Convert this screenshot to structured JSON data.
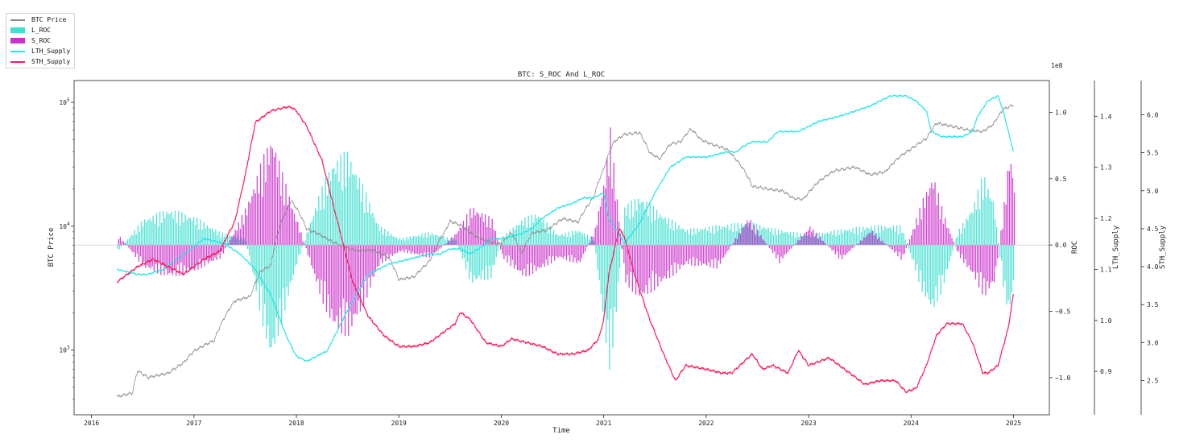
{
  "legend": [
    {
      "label": "BTC Price",
      "color": "#8c8c8c",
      "kind": "line"
    },
    {
      "label": "L_ROC",
      "color": "#40e0d0",
      "kind": "patch"
    },
    {
      "label": "S_ROC",
      "color": "#cc33cc",
      "kind": "patch"
    },
    {
      "label": "LTH_Supply",
      "color": "#22e6e6",
      "kind": "line"
    },
    {
      "label": "STH_Supply",
      "color": "#ff1a55",
      "kind": "line"
    }
  ],
  "chart_data": {
    "type": "line",
    "title": "BTC: S_ROC And L_ROC",
    "xlabel": "Time",
    "xlim": [
      2015.83,
      2025.35
    ],
    "x_ticks": [
      "2016",
      "2017",
      "2018",
      "2019",
      "2020",
      "2021",
      "2022",
      "2023",
      "2024",
      "2025"
    ],
    "axes": {
      "btc_price": {
        "label": "BTC Price",
        "scale": "log",
        "ylim": [
          300,
          150000
        ],
        "ticks": [
          1000,
          10000,
          100000
        ],
        "tick_labels": [
          "10",
          "10",
          "10"
        ],
        "tick_exponents": [
          "3",
          "4",
          "5"
        ],
        "side": "left"
      },
      "roc": {
        "label": "ROC",
        "ylim": [
          -1.28,
          1.24
        ],
        "ticks": [
          -1.0,
          -0.5,
          0.0,
          0.5,
          1.0
        ],
        "tick_labels": [
          "−1.0",
          "−0.5",
          "0.0",
          "0.5",
          "1.0"
        ],
        "multiplier": "1e8",
        "side": "right"
      },
      "lth_supply": {
        "label": "LTH_Supply",
        "ylim": [
          0.815,
          1.47
        ],
        "ticks": [
          0.9,
          1.0,
          1.1,
          1.2,
          1.3,
          1.4
        ],
        "tick_labels": [
          "0.9",
          "1.0",
          "1.1",
          "1.2",
          "1.3",
          "1.4"
        ],
        "side": "right"
      },
      "sth_supply": {
        "label": "STH_Supply",
        "ylim": [
          2.05,
          6.45
        ],
        "ticks": [
          2.5,
          3.0,
          3.5,
          4.0,
          4.5,
          5.0,
          5.5,
          6.0
        ],
        "tick_labels": [
          "2.5",
          "3.0",
          "3.5",
          "4.0",
          "4.5",
          "5.0",
          "5.5",
          "6.0"
        ],
        "side": "right"
      }
    },
    "series": [
      {
        "name": "BTC Price",
        "axis": "btc_price",
        "color": "#8c8c8c",
        "x": [
          2016.25,
          2016.4,
          2016.45,
          2016.55,
          2016.75,
          2016.9,
          2017.0,
          2017.2,
          2017.4,
          2017.55,
          2017.65,
          2017.75,
          2017.85,
          2017.95,
          2018.0,
          2018.1,
          2018.2,
          2018.35,
          2018.5,
          2018.6,
          2018.75,
          2018.9,
          2019.0,
          2019.15,
          2019.3,
          2019.45,
          2019.5,
          2019.6,
          2019.75,
          2019.9,
          2020.0,
          2020.1,
          2020.2,
          2020.3,
          2020.45,
          2020.6,
          2020.75,
          2020.9,
          2021.0,
          2021.1,
          2021.2,
          2021.35,
          2021.45,
          2021.55,
          2021.65,
          2021.75,
          2021.85,
          2021.95,
          2022.05,
          2022.2,
          2022.35,
          2022.45,
          2022.6,
          2022.75,
          2022.85,
          2022.95,
          2023.1,
          2023.25,
          2023.45,
          2023.6,
          2023.75,
          2023.9,
          2024.0,
          2024.15,
          2024.25,
          2024.4,
          2024.55,
          2024.7,
          2024.8,
          2024.9,
          2025.0
        ],
        "y": [
          420,
          450,
          680,
          600,
          650,
          790,
          980,
          1200,
          2500,
          2700,
          4300,
          4800,
          10500,
          16000,
          14000,
          9500,
          8800,
          7500,
          6600,
          6300,
          6400,
          5600,
          3700,
          3900,
          5200,
          9000,
          11000,
          10200,
          8300,
          7400,
          7200,
          8800,
          6000,
          8800,
          9300,
          11500,
          10800,
          17000,
          29000,
          48000,
          55000,
          57000,
          39000,
          35000,
          46000,
          48000,
          61000,
          50000,
          46000,
          42000,
          30000,
          21000,
          20000,
          19200,
          16800,
          16500,
          23000,
          28000,
          30000,
          26000,
          27500,
          37000,
          42000,
          51000,
          68000,
          64000,
          60000,
          58000,
          66000,
          88000,
          95000
        ]
      },
      {
        "name": "LTH_Supply",
        "axis": "lth_supply",
        "color": "#22e6e6",
        "x": [
          2016.25,
          2016.45,
          2016.55,
          2016.7,
          2016.9,
          2017.1,
          2017.3,
          2017.45,
          2017.6,
          2017.75,
          2017.9,
          2018.0,
          2018.1,
          2018.3,
          2018.5,
          2018.7,
          2018.9,
          2019.1,
          2019.3,
          2019.4,
          2019.5,
          2019.6,
          2019.7,
          2019.85,
          2019.9,
          2020.0,
          2020.2,
          2020.3,
          2020.4,
          2020.55,
          2020.7,
          2020.8,
          2020.9,
          2021.0,
          2021.05,
          2021.15,
          2021.2,
          2021.35,
          2021.5,
          2021.65,
          2021.8,
          2022.0,
          2022.2,
          2022.3,
          2022.35,
          2022.45,
          2022.6,
          2022.7,
          2022.9,
          2023.1,
          2023.3,
          2023.6,
          2023.8,
          2023.85,
          2023.95,
          2024.05,
          2024.15,
          2024.2,
          2024.3,
          2024.5,
          2024.6,
          2024.65,
          2024.75,
          2024.85,
          2024.9,
          2024.95,
          2025.0
        ],
        "y": [
          1.1,
          1.09,
          1.09,
          1.1,
          1.13,
          1.16,
          1.15,
          1.13,
          1.1,
          1.05,
          0.97,
          0.93,
          0.92,
          0.94,
          1.02,
          1.09,
          1.11,
          1.12,
          1.13,
          1.13,
          1.14,
          1.14,
          1.13,
          1.15,
          1.16,
          1.16,
          1.17,
          1.18,
          1.2,
          1.22,
          1.23,
          1.24,
          1.24,
          1.25,
          1.2,
          1.17,
          1.15,
          1.19,
          1.25,
          1.3,
          1.32,
          1.32,
          1.33,
          1.33,
          1.34,
          1.35,
          1.35,
          1.37,
          1.37,
          1.39,
          1.4,
          1.42,
          1.44,
          1.44,
          1.44,
          1.43,
          1.41,
          1.37,
          1.36,
          1.36,
          1.37,
          1.4,
          1.43,
          1.44,
          1.41,
          1.37,
          1.33
        ]
      },
      {
        "name": "STH_Supply",
        "axis": "sth_supply",
        "color": "#ff1a55",
        "x": [
          2016.25,
          2016.45,
          2016.6,
          2016.75,
          2016.9,
          2017.0,
          2017.1,
          2017.25,
          2017.4,
          2017.5,
          2017.6,
          2017.75,
          2017.9,
          2017.95,
          2018.0,
          2018.1,
          2018.25,
          2018.4,
          2018.55,
          2018.7,
          2018.85,
          2019.0,
          2019.15,
          2019.3,
          2019.45,
          2019.55,
          2019.6,
          2019.7,
          2019.85,
          2020.0,
          2020.1,
          2020.25,
          2020.4,
          2020.55,
          2020.7,
          2020.85,
          2020.95,
          2021.0,
          2021.05,
          2021.15,
          2021.2,
          2021.3,
          2021.45,
          2021.6,
          2021.7,
          2021.8,
          2022.0,
          2022.15,
          2022.25,
          2022.45,
          2022.55,
          2022.65,
          2022.8,
          2022.9,
          2023.0,
          2023.2,
          2023.4,
          2023.55,
          2023.7,
          2023.85,
          2023.95,
          2024.05,
          2024.15,
          2024.25,
          2024.35,
          2024.5,
          2024.6,
          2024.7,
          2024.75,
          2024.85,
          2024.95,
          2025.0
        ],
        "y": [
          3.8,
          4.0,
          4.1,
          4.0,
          3.9,
          4.0,
          4.1,
          4.2,
          4.6,
          5.2,
          5.9,
          6.05,
          6.1,
          6.1,
          6.05,
          5.85,
          5.4,
          4.6,
          3.8,
          3.35,
          3.1,
          2.95,
          2.95,
          3.0,
          3.15,
          3.25,
          3.4,
          3.3,
          3.0,
          2.95,
          3.05,
          3.0,
          2.95,
          2.85,
          2.85,
          2.9,
          3.05,
          3.3,
          3.9,
          4.5,
          4.4,
          3.9,
          3.3,
          2.8,
          2.5,
          2.7,
          2.65,
          2.6,
          2.6,
          2.85,
          2.65,
          2.7,
          2.6,
          2.9,
          2.7,
          2.8,
          2.6,
          2.45,
          2.5,
          2.5,
          2.35,
          2.4,
          2.7,
          3.1,
          3.25,
          3.25,
          3.0,
          2.6,
          2.6,
          2.7,
          3.2,
          3.65
        ]
      }
    ],
    "roc_bars": {
      "axis": "roc",
      "L_ROC": {
        "name": "L_ROC",
        "color": "#40e0d0",
        "x": [
          2016.25,
          2016.5,
          2016.75,
          2017.0,
          2017.25,
          2017.5,
          2017.65,
          2017.75,
          2017.85,
          2018.0,
          2018.2,
          2018.35,
          2018.5,
          2018.65,
          2018.8,
          2019.0,
          2019.3,
          2019.55,
          2019.7,
          2019.9,
          2020.0,
          2020.2,
          2020.35,
          2020.55,
          2020.75,
          2020.9,
          2021.0,
          2021.05,
          2021.1,
          2021.2,
          2021.35,
          2021.55,
          2021.8,
          2022.1,
          2022.4,
          2022.7,
          2023.0,
          2023.3,
          2023.6,
          2023.9,
          2024.1,
          2024.2,
          2024.3,
          2024.45,
          2024.6,
          2024.7,
          2024.8,
          2024.9,
          2024.95,
          2025.0
        ],
        "y": [
          -0.05,
          0.2,
          0.28,
          0.22,
          0.1,
          0.05,
          -0.55,
          -0.9,
          -0.6,
          -0.15,
          0.35,
          0.65,
          0.72,
          0.45,
          0.15,
          0.05,
          0.1,
          0.04,
          -0.3,
          -0.25,
          0.06,
          0.2,
          0.25,
          0.08,
          0.12,
          0.05,
          -0.65,
          -0.95,
          -0.7,
          0.3,
          0.38,
          0.25,
          0.12,
          0.15,
          0.18,
          0.12,
          0.08,
          0.12,
          0.15,
          0.15,
          -0.35,
          -0.52,
          -0.35,
          0.1,
          0.3,
          0.55,
          0.35,
          -0.35,
          -0.55,
          -0.3
        ]
      },
      "S_ROC": {
        "name": "S_ROC",
        "color": "#cc33cc",
        "x": [
          2016.25,
          2016.5,
          2016.75,
          2017.0,
          2017.25,
          2017.5,
          2017.65,
          2017.75,
          2017.85,
          2018.0,
          2018.2,
          2018.35,
          2018.5,
          2018.65,
          2018.8,
          2019.0,
          2019.3,
          2019.55,
          2019.7,
          2019.9,
          2020.0,
          2020.2,
          2020.35,
          2020.55,
          2020.75,
          2020.9,
          2021.0,
          2021.05,
          2021.1,
          2021.2,
          2021.35,
          2021.55,
          2021.8,
          2022.1,
          2022.4,
          2022.7,
          2023.0,
          2023.3,
          2023.6,
          2023.9,
          2024.1,
          2024.2,
          2024.3,
          2024.45,
          2024.6,
          2024.7,
          2024.8,
          2024.9,
          2024.95,
          2025.0
        ],
        "y": [
          0.08,
          -0.18,
          -0.25,
          -0.2,
          -0.1,
          0.3,
          0.65,
          0.85,
          0.55,
          0.18,
          -0.35,
          -0.65,
          -0.7,
          -0.45,
          -0.15,
          -0.05,
          -0.1,
          0.1,
          0.3,
          0.2,
          -0.1,
          -0.25,
          -0.2,
          -0.1,
          -0.15,
          0.12,
          0.55,
          0.9,
          0.5,
          -0.3,
          -0.42,
          -0.3,
          -0.15,
          -0.18,
          0.22,
          -0.14,
          0.15,
          -0.12,
          0.12,
          -0.12,
          0.35,
          0.55,
          0.25,
          -0.08,
          -0.25,
          -0.4,
          -0.3,
          0.35,
          0.75,
          0.45
        ]
      }
    }
  }
}
